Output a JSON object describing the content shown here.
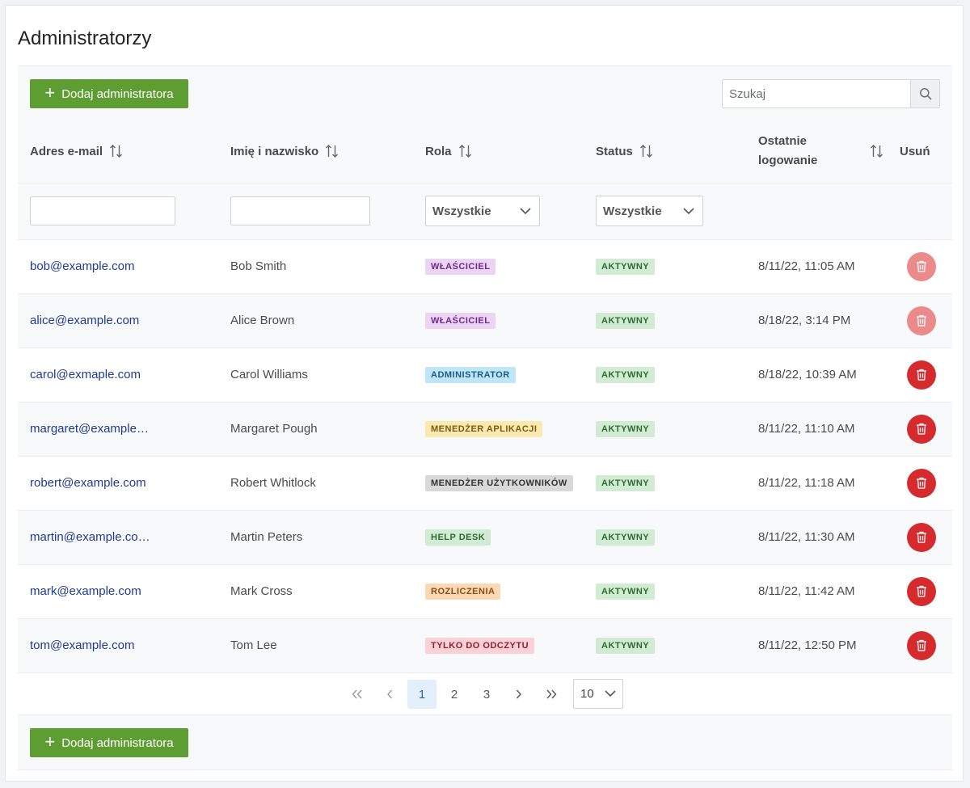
{
  "page": {
    "title": "Administratorzy"
  },
  "toolbar": {
    "add_label": "Dodaj administratora",
    "search_placeholder": "Szukaj"
  },
  "columns": {
    "email": "Adres e-mail",
    "name": "Imię i nazwisko",
    "role": "Rola",
    "status": "Status",
    "last_login": "Ostatnie logowanie",
    "delete": "Usuń"
  },
  "filters": {
    "role_selected": "Wszystkie",
    "status_selected": "Wszystkie"
  },
  "rows": [
    {
      "email": "bob@example.com",
      "name": "Bob Smith",
      "role": "WŁAŚCICIEL",
      "status": "AKTYWNY",
      "last_login": "8/11/22, 11:05 AM",
      "delete_disabled": true
    },
    {
      "email": "alice@example.com",
      "name": "Alice Brown",
      "role": "WŁAŚCICIEL",
      "status": "AKTYWNY",
      "last_login": "8/18/22, 3:14 PM",
      "delete_disabled": true
    },
    {
      "email": "carol@exmaple.com",
      "name": "Carol Williams",
      "role": "ADMINISTRATOR",
      "status": "AKTYWNY",
      "last_login": "8/18/22, 10:39 AM",
      "delete_disabled": false
    },
    {
      "email": "margaret@example…",
      "name": "Margaret Pough",
      "role": "MENEDŻER APLIKACJI",
      "status": "AKTYWNY",
      "last_login": "8/11/22, 11:10 AM",
      "delete_disabled": false
    },
    {
      "email": "robert@example.com",
      "name": "Robert Whitlock",
      "role": "MENEDŻER UŻYTKOWNIKÓW",
      "status": "AKTYWNY",
      "last_login": "8/11/22, 11:18 AM",
      "delete_disabled": false
    },
    {
      "email": "martin@example.co…",
      "name": "Martin Peters",
      "role": "HELP DESK",
      "status": "AKTYWNY",
      "last_login": "8/11/22, 11:30 AM",
      "delete_disabled": false
    },
    {
      "email": "mark@example.com",
      "name": "Mark Cross",
      "role": "ROZLICZENIA",
      "status": "AKTYWNY",
      "last_login": "8/11/22, 11:42 AM",
      "delete_disabled": false
    },
    {
      "email": "tom@example.com",
      "name": "Tom Lee",
      "role": "TYLKO DO ODCZYTU",
      "status": "AKTYWNY",
      "last_login": "8/11/22, 12:50 PM",
      "delete_disabled": false
    }
  ],
  "role_colors": {
    "WŁAŚCICIEL": {
      "bg": "#ecd4f5",
      "fg": "#6a2b86"
    },
    "ADMINISTRATOR": {
      "bg": "#bfe6f8",
      "fg": "#1a5c86"
    },
    "MENEDŻER APLIKACJI": {
      "bg": "#fbeab0",
      "fg": "#7a5a10"
    },
    "MENEDŻER UŻYTKOWNIKÓW": {
      "bg": "#d9d9d9",
      "fg": "#333333"
    },
    "HELP DESK": {
      "bg": "#d2ecd3",
      "fg": "#2f6a33"
    },
    "ROZLICZENIA": {
      "bg": "#fcd9b4",
      "fg": "#8a4b14"
    },
    "TYLKO DO ODCZYTU": {
      "bg": "#fbd1d6",
      "fg": "#8d2231"
    }
  },
  "status_colors": {
    "AKTYWNY": {
      "bg": "#d2ecd3",
      "fg": "#2f6a33"
    }
  },
  "delete_colors": {
    "enabled": "#d52b2f",
    "disabled": "#ea8a8a"
  },
  "pagination": {
    "pages": [
      "1",
      "2",
      "3"
    ],
    "current": "1",
    "page_size": "10"
  },
  "footer": {
    "add_label": "Dodaj administratora"
  },
  "accent": {
    "primary_button": "#5d9d32",
    "link": "#1f3a93"
  }
}
